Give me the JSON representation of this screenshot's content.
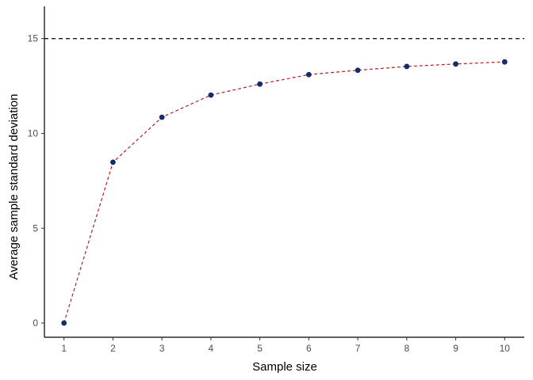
{
  "chart_data": {
    "type": "line",
    "title": "",
    "xlabel": "Sample size",
    "ylabel": "Average sample standard deviation",
    "x": [
      1,
      2,
      3,
      4,
      5,
      6,
      7,
      8,
      9,
      10
    ],
    "series": [
      {
        "values": [
          0,
          8.48,
          10.85,
          12.02,
          12.6,
          13.1,
          13.33,
          13.53,
          13.66,
          13.77
        ],
        "line_color": "#B22222",
        "line_style": "dashed",
        "point_color": "#172C66"
      }
    ],
    "reference_line": {
      "y": 15,
      "color": "#000000",
      "style": "dashed"
    },
    "xlim": [
      0.6,
      10.4
    ],
    "ylim": [
      -0.75,
      16.7
    ],
    "x_ticks": [
      "1",
      "2",
      "3",
      "4",
      "5",
      "6",
      "7",
      "8",
      "9",
      "10"
    ],
    "y_ticks": [
      "0",
      "5",
      "10",
      "15"
    ],
    "grid": false,
    "legend": "none"
  }
}
